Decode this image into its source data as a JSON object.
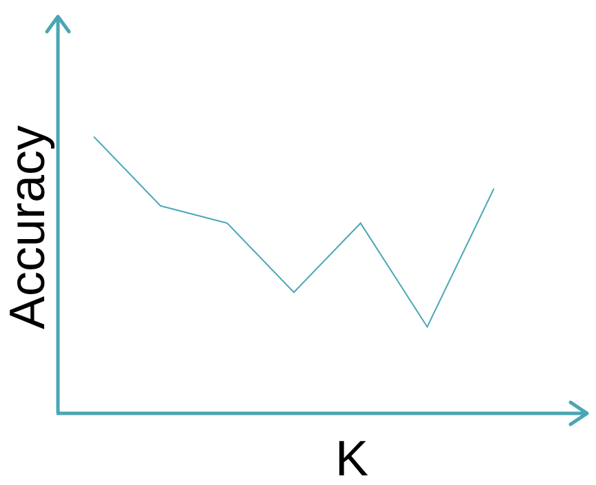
{
  "chart_data": {
    "type": "line",
    "title": "",
    "xlabel": "K",
    "ylabel": "Accuracy",
    "x": [
      1,
      2,
      3,
      4,
      5,
      6,
      7
    ],
    "series": [
      {
        "values": [
          0.8,
          0.6,
          0.55,
          0.35,
          0.55,
          0.25,
          0.65
        ]
      }
    ],
    "ylim": [
      0,
      1
    ],
    "grid": false,
    "axis_ticks": false,
    "legend": "none",
    "colors": {
      "axis": "#4aa6b4",
      "line": "#4aa6b4"
    }
  }
}
